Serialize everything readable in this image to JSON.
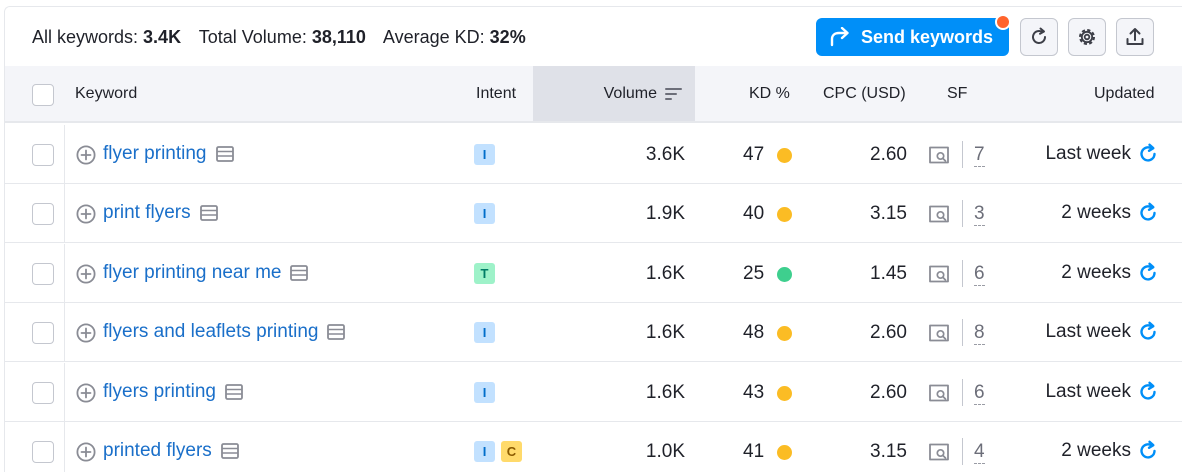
{
  "summary": {
    "all_keywords_label": "All keywords:",
    "all_keywords_value": "3.4K",
    "total_volume_label": "Total Volume:",
    "total_volume_value": "38,110",
    "avg_kd_label": "Average KD:",
    "avg_kd_value": "32%"
  },
  "toolbar": {
    "send_label": "Send keywords",
    "send_icon": "share-arrow-icon",
    "refresh_icon": "refresh-icon",
    "settings_icon": "gear-icon",
    "export_icon": "export-icon"
  },
  "columns": {
    "keyword": "Keyword",
    "intent": "Intent",
    "volume": "Volume",
    "kd": "KD %",
    "cpc": "CPC (USD)",
    "sf": "SF",
    "updated": "Updated"
  },
  "colors": {
    "accent": "#008ff8",
    "link": "#1a6fc9",
    "kd_yellow": "#ffc700",
    "kd_green": "#3dd598"
  },
  "rows": [
    {
      "keyword": "flyer printing",
      "intents": [
        "I"
      ],
      "volume": "3.6K",
      "kd": "47",
      "kd_color": "#fbbc24",
      "cpc": "2.60",
      "sf": "7",
      "updated": "Last week"
    },
    {
      "keyword": "print flyers",
      "intents": [
        "I"
      ],
      "volume": "1.9K",
      "kd": "40",
      "kd_color": "#fbbc24",
      "cpc": "3.15",
      "sf": "3",
      "updated": "2 weeks"
    },
    {
      "keyword": "flyer printing near me",
      "intents": [
        "T"
      ],
      "volume": "1.6K",
      "kd": "25",
      "kd_color": "#3ecf8e",
      "cpc": "1.45",
      "sf": "6",
      "updated": "2 weeks"
    },
    {
      "keyword": "flyers and leaflets printing",
      "intents": [
        "I"
      ],
      "volume": "1.6K",
      "kd": "48",
      "kd_color": "#fbbc24",
      "cpc": "2.60",
      "sf": "8",
      "updated": "Last week"
    },
    {
      "keyword": "flyers printing",
      "intents": [
        "I"
      ],
      "volume": "1.6K",
      "kd": "43",
      "kd_color": "#fbbc24",
      "cpc": "2.60",
      "sf": "6",
      "updated": "Last week"
    },
    {
      "keyword": "printed flyers",
      "intents": [
        "I",
        "C"
      ],
      "volume": "1.0K",
      "kd": "41",
      "kd_color": "#fbbc24",
      "cpc": "3.15",
      "sf": "4",
      "updated": "2 weeks"
    }
  ]
}
